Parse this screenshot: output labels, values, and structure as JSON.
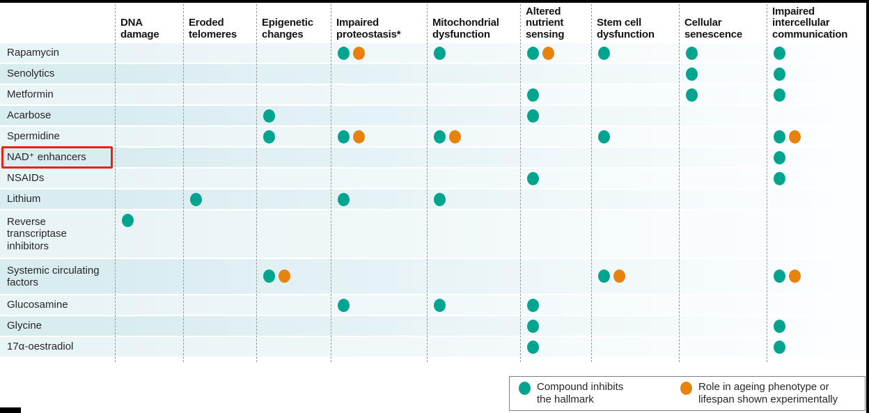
{
  "chart_data": {
    "type": "table",
    "description": "Dot matrix figure mapping candidate anti-ageing compounds (rows) to the hallmarks of ageing they act on (columns)",
    "columns": [
      "DNA damage",
      "Eroded telomeres",
      "Epigenetic changes",
      "Impaired proteostasis*",
      "Mitochondrial dysfunction",
      "Altered nutrient sensing",
      "Stem cell dysfunction",
      "Cellular senescence",
      "Impaired intercellular communication"
    ],
    "cell_codes": {
      "T": "teal dot - compound inhibits the hallmark",
      "O": "orange dot - role in ageing phenotype or lifespan shown experimentally",
      "": "no dot"
    },
    "rows": [
      {
        "label": "Rapamycin",
        "highlighted": false,
        "cells": [
          "",
          "",
          "",
          "TO",
          "T",
          "TO",
          "T",
          "T",
          "T"
        ]
      },
      {
        "label": "Senolytics",
        "highlighted": false,
        "cells": [
          "",
          "",
          "",
          "",
          "",
          "",
          "",
          "T",
          "T"
        ]
      },
      {
        "label": "Metformin",
        "highlighted": false,
        "cells": [
          "",
          "",
          "",
          "",
          "",
          "T",
          "",
          "T",
          "T"
        ]
      },
      {
        "label": "Acarbose",
        "highlighted": false,
        "cells": [
          "",
          "",
          "T",
          "",
          "",
          "T",
          "",
          "",
          ""
        ]
      },
      {
        "label": "Spermidine",
        "highlighted": false,
        "cells": [
          "",
          "",
          "T",
          "TO",
          "TO",
          "",
          "T",
          "",
          "TO"
        ]
      },
      {
        "label": "NAD⁺ enhancers",
        "highlighted": true,
        "cells": [
          "",
          "",
          "",
          "",
          "",
          "",
          "",
          "",
          "T"
        ]
      },
      {
        "label": "NSAIDs",
        "highlighted": false,
        "cells": [
          "",
          "",
          "",
          "",
          "",
          "T",
          "",
          "",
          "T"
        ]
      },
      {
        "label": "Lithium",
        "highlighted": false,
        "cells": [
          "",
          "T",
          "",
          "T",
          "T",
          "",
          "",
          "",
          ""
        ]
      },
      {
        "label": "Reverse transcriptase inhibitors",
        "highlighted": false,
        "cells": [
          "T",
          "",
          "",
          "",
          "",
          "",
          "",
          "",
          ""
        ]
      },
      {
        "label": "Systemic circulating factors",
        "highlighted": false,
        "cells": [
          "",
          "",
          "TO",
          "",
          "",
          "",
          "TO",
          "",
          "TO"
        ]
      },
      {
        "label": "Glucosamine",
        "highlighted": false,
        "cells": [
          "",
          "",
          "",
          "T",
          "T",
          "T",
          "",
          "",
          ""
        ]
      },
      {
        "label": "Glycine",
        "highlighted": false,
        "cells": [
          "",
          "",
          "",
          "",
          "",
          "T",
          "",
          "",
          "T"
        ]
      },
      {
        "label": "17α-oestradiol",
        "highlighted": false,
        "cells": [
          "",
          "",
          "",
          "",
          "",
          "T",
          "",
          "",
          "T"
        ]
      }
    ],
    "legend": {
      "items": [
        {
          "code": "T",
          "color": "#00a48f",
          "label": "Compound inhibits the hallmark"
        },
        {
          "code": "O",
          "color": "#e8820f",
          "label": "Role in ageing phenotype or lifespan shown experimentally"
        }
      ]
    },
    "colors": {
      "inhibits": "#00a48f",
      "experimental": "#e8820f",
      "highlight_box": "#e42313",
      "row_band_light": "#e9f4f6",
      "row_band_dark": "#d9ecf0"
    }
  }
}
